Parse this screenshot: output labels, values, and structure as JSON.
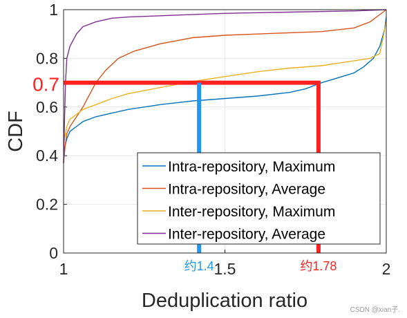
{
  "chart_data": {
    "type": "line",
    "xlabel": "Deduplication ratio",
    "ylabel": "CDF",
    "xlim": [
      1,
      2
    ],
    "ylim": [
      0,
      1
    ],
    "x_ticks": [
      "1",
      "1.5",
      "2"
    ],
    "y_ticks": [
      "0",
      "0.2",
      "0.4",
      "0.6",
      "0.8",
      "1"
    ],
    "grid": true,
    "legend_position": "bottom-right",
    "series": [
      {
        "name": "Intra-repository, Maximum",
        "color": "#0072BD",
        "points": [
          [
            1.0,
            0.37
          ],
          [
            1.003,
            0.43
          ],
          [
            1.01,
            0.47
          ],
          [
            1.02,
            0.5
          ],
          [
            1.04,
            0.52
          ],
          [
            1.06,
            0.54
          ],
          [
            1.1,
            0.56
          ],
          [
            1.15,
            0.575
          ],
          [
            1.2,
            0.59
          ],
          [
            1.3,
            0.61
          ],
          [
            1.4,
            0.625
          ],
          [
            1.5,
            0.635
          ],
          [
            1.6,
            0.645
          ],
          [
            1.7,
            0.66
          ],
          [
            1.75,
            0.675
          ],
          [
            1.8,
            0.7
          ],
          [
            1.85,
            0.72
          ],
          [
            1.9,
            0.74
          ],
          [
            1.93,
            0.765
          ],
          [
            1.96,
            0.8
          ],
          [
            1.98,
            0.85
          ],
          [
            1.995,
            0.92
          ],
          [
            2.0,
            0.97
          ]
        ]
      },
      {
        "name": "Intra-repository, Average",
        "color": "#D95319",
        "points": [
          [
            1.0,
            0.37
          ],
          [
            1.005,
            0.44
          ],
          [
            1.01,
            0.49
          ],
          [
            1.02,
            0.52
          ],
          [
            1.04,
            0.56
          ],
          [
            1.06,
            0.6
          ],
          [
            1.08,
            0.65
          ],
          [
            1.1,
            0.7
          ],
          [
            1.13,
            0.75
          ],
          [
            1.17,
            0.8
          ],
          [
            1.22,
            0.83
          ],
          [
            1.3,
            0.86
          ],
          [
            1.4,
            0.885
          ],
          [
            1.5,
            0.895
          ],
          [
            1.6,
            0.9
          ],
          [
            1.7,
            0.905
          ],
          [
            1.8,
            0.91
          ],
          [
            1.9,
            0.925
          ],
          [
            1.95,
            0.95
          ],
          [
            1.98,
            0.98
          ],
          [
            2.0,
            1.0
          ]
        ]
      },
      {
        "name": "Inter-repository, Maximum",
        "color": "#EDB120",
        "points": [
          [
            1.0,
            0.45
          ],
          [
            1.01,
            0.52
          ],
          [
            1.02,
            0.55
          ],
          [
            1.04,
            0.57
          ],
          [
            1.06,
            0.59
          ],
          [
            1.1,
            0.61
          ],
          [
            1.15,
            0.635
          ],
          [
            1.2,
            0.655
          ],
          [
            1.3,
            0.68
          ],
          [
            1.4,
            0.705
          ],
          [
            1.5,
            0.725
          ],
          [
            1.6,
            0.745
          ],
          [
            1.7,
            0.76
          ],
          [
            1.8,
            0.77
          ],
          [
            1.9,
            0.79
          ],
          [
            1.95,
            0.8
          ],
          [
            1.98,
            0.82
          ],
          [
            2.0,
            0.95
          ]
        ]
      },
      {
        "name": "Inter-repository, Average",
        "color": "#7E2F8E",
        "points": [
          [
            1.0,
            0.37
          ],
          [
            1.003,
            0.55
          ],
          [
            1.006,
            0.7
          ],
          [
            1.01,
            0.8
          ],
          [
            1.02,
            0.85
          ],
          [
            1.04,
            0.9
          ],
          [
            1.06,
            0.93
          ],
          [
            1.1,
            0.95
          ],
          [
            1.15,
            0.965
          ],
          [
            1.2,
            0.97
          ],
          [
            1.3,
            0.975
          ],
          [
            1.5,
            0.985
          ],
          [
            1.7,
            0.99
          ],
          [
            1.9,
            0.995
          ],
          [
            2.0,
            1.0
          ]
        ]
      }
    ],
    "annotations": {
      "highlight_y": {
        "label": "0.7",
        "value": 0.7,
        "color": "#FF2020"
      },
      "markers": [
        {
          "label": "约1.4",
          "x": 1.42,
          "color": "#2196F3"
        },
        {
          "label": "约1.78",
          "x": 1.79,
          "color": "#FF2020"
        }
      ]
    }
  },
  "watermark": "CSDN @xian子."
}
